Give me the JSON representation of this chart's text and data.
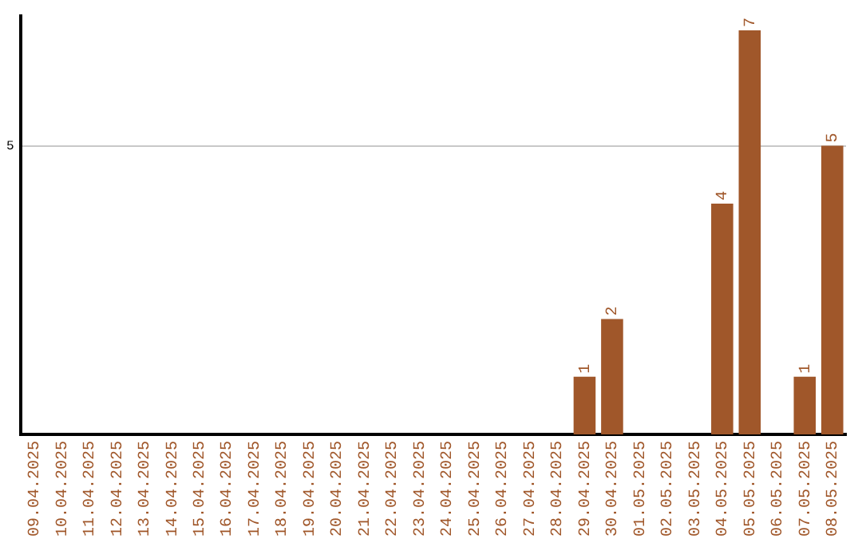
{
  "chart_data": {
    "type": "bar",
    "categories": [
      "09.04.2025",
      "10.04.2025",
      "11.04.2025",
      "12.04.2025",
      "13.04.2025",
      "14.04.2025",
      "15.04.2025",
      "16.04.2025",
      "17.04.2025",
      "18.04.2025",
      "19.04.2025",
      "20.04.2025",
      "21.04.2025",
      "22.04.2025",
      "23.04.2025",
      "24.04.2025",
      "25.04.2025",
      "26.04.2025",
      "27.04.2025",
      "28.04.2025",
      "29.04.2025",
      "30.04.2025",
      "01.05.2025",
      "02.05.2025",
      "03.05.2025",
      "04.05.2025",
      "05.05.2025",
      "06.05.2025",
      "07.05.2025",
      "08.05.2025"
    ],
    "values": [
      null,
      null,
      null,
      null,
      null,
      null,
      null,
      null,
      null,
      null,
      null,
      null,
      null,
      null,
      null,
      null,
      null,
      null,
      null,
      null,
      1,
      2,
      null,
      null,
      null,
      4,
      7,
      null,
      1,
      5
    ],
    "data_labels": true,
    "color": "#a0572a",
    "ylim": [
      0,
      7.25
    ],
    "yticks": [
      5
    ],
    "grid": "y",
    "legend": false
  }
}
